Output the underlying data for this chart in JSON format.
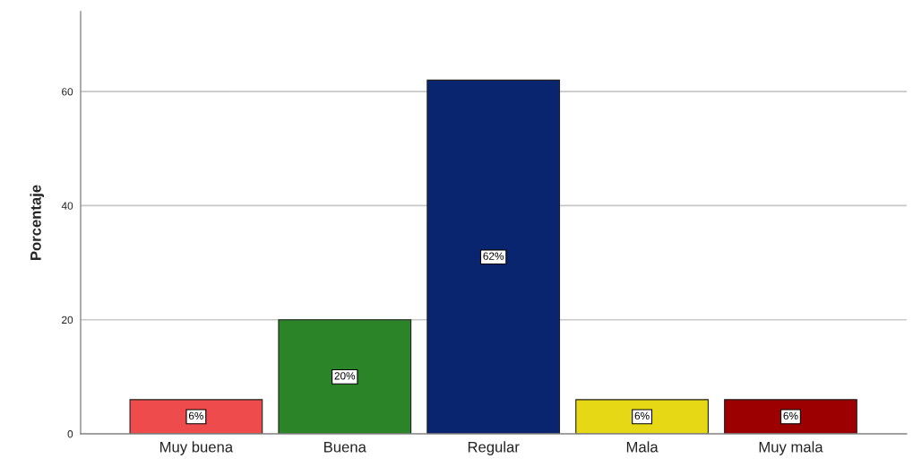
{
  "chart_data": {
    "type": "bar",
    "ylabel": "Porcentaje",
    "categories": [
      "Muy buena",
      "Buena",
      "Regular",
      "Mala",
      "Muy mala"
    ],
    "values": [
      6,
      20,
      62,
      6,
      6
    ],
    "colors": [
      "#ee4c4c",
      "#2b8528",
      "#0a2570",
      "#e6d815",
      "#9c0000"
    ],
    "value_labels": [
      "6%",
      "20%",
      "62%",
      "6%",
      "6%"
    ],
    "ylim": [
      0,
      74
    ],
    "yticks": [
      0,
      20,
      40,
      60
    ],
    "grid": "y"
  }
}
